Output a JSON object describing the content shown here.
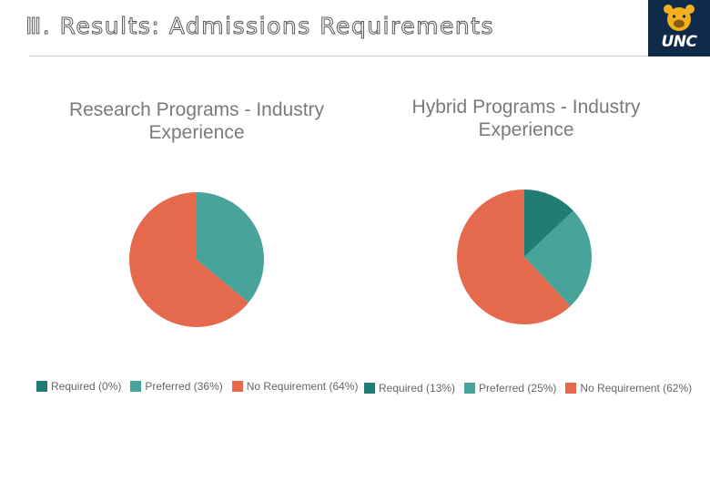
{
  "slide": {
    "title": "Ⅲ. Results: Admissions Requirements",
    "logo_text": "UNC"
  },
  "colors": {
    "required": "#217d73",
    "preferred": "#48a39a",
    "no_requirement": "#e5694c",
    "logo_bg": "#0f2b49"
  },
  "chart_data": [
    {
      "type": "pie",
      "title_lines": [
        "Research Programs - Industry",
        "Experience"
      ],
      "categories": [
        "Required",
        "Preferred",
        "No Requirement"
      ],
      "values": [
        0,
        36,
        64
      ],
      "legend": [
        "Required (0%)",
        "Preferred (36%)",
        "No Requirement (64%)"
      ],
      "legend_position": "bottom"
    },
    {
      "type": "pie",
      "title_lines": [
        "Hybrid Programs - Industry",
        "Experience"
      ],
      "categories": [
        "Required",
        "Preferred",
        "No Requirement"
      ],
      "values": [
        13,
        25,
        62
      ],
      "legend": [
        "Required (13%)",
        "Preferred (25%)",
        "No Requirement (62%)"
      ],
      "legend_position": "bottom"
    }
  ]
}
